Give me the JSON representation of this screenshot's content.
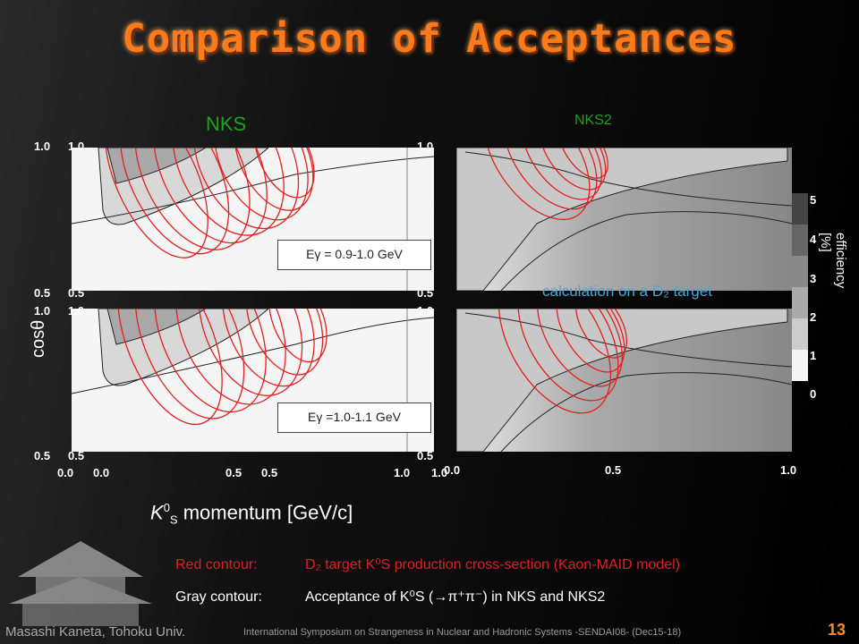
{
  "title": "Comparison of Acceptances",
  "nks_label": "NKS",
  "nks2_label": "NKS2",
  "ylabel": "cosθ",
  "xlabel_main": "K",
  "xlabel_super": "0",
  "xlabel_sub": "S",
  "xlabel_rest": " momentum [GeV/c]",
  "colorbar": {
    "label": "efficiency [%]",
    "ticks": [
      "0",
      "1",
      "2",
      "3",
      "4",
      "5"
    ]
  },
  "energy_boxes": [
    "Eγ = 0.9-1.0 GeV",
    "Eγ =1.0-1.1 GeV"
  ],
  "overlay_note": "calculation on a D₂ target",
  "ticks": {
    "y_top_left_outer": "1.0",
    "y_top_left_inner": "1.0",
    "y_top_mid": "1.0",
    "y_mid_left_outer": "0.5",
    "y_mid_left_inner": "0.5",
    "y_mid_mid": "0.5",
    "y_mid2_left_outer": "1.0",
    "y_mid2_left_inner": "1.0",
    "y_mid2_mid": "1.0",
    "y_bot_left_outer": "0.5",
    "y_bot_left_inner": "0.5",
    "y_bot_mid": "0.5",
    "x_left_0a": "0.0",
    "x_left_0b": "0.0",
    "x_left_5a": "0.5",
    "x_left_5b": "0.5",
    "x_left_10": "1.0",
    "x_mid_10": "1.0",
    "x_right_0": "0.0",
    "x_right_5": "0.5",
    "x_right_10": "1.0"
  },
  "legend": [
    {
      "label": "Red contour:",
      "text": "D₂ target K⁰S production cross-section (Kaon-MAID model)",
      "color": "#e02020"
    },
    {
      "label": "Gray contour:",
      "text": "Acceptance of K⁰S (→π⁺π⁻) in NKS and NKS2",
      "color": "#ffffff"
    }
  ],
  "footer": {
    "author": "Masashi Kaneta, Tohoku Univ.",
    "conference": "International Symposium on Strangeness in Nuclear and Hadronic Systems -SENDAI08- (Dec15-18)",
    "page": "13"
  },
  "chart_data": [
    {
      "type": "heatmap",
      "title": "NKS",
      "note": "Eγ = 0.9-1.0 GeV",
      "xlim": [
        0.0,
        1.0
      ],
      "ylim": [
        0.5,
        1.0
      ],
      "xlabel": "K0S momentum [GeV/c]",
      "ylabel": "cosθ",
      "colorbar": "efficiency [%]",
      "zlim": [
        0,
        5
      ]
    },
    {
      "type": "heatmap",
      "title": "NKS",
      "note": "Eγ =1.0-1.1 GeV",
      "xlim": [
        0.0,
        1.0
      ],
      "ylim": [
        0.5,
        1.0
      ]
    },
    {
      "type": "heatmap",
      "title": "NKS2",
      "xlim": [
        0.0,
        1.0
      ],
      "ylim": [
        0.5,
        1.0
      ]
    },
    {
      "type": "heatmap",
      "title": "NKS2",
      "xlim": [
        0.0,
        1.0
      ],
      "ylim": [
        0.5,
        1.0
      ]
    }
  ]
}
